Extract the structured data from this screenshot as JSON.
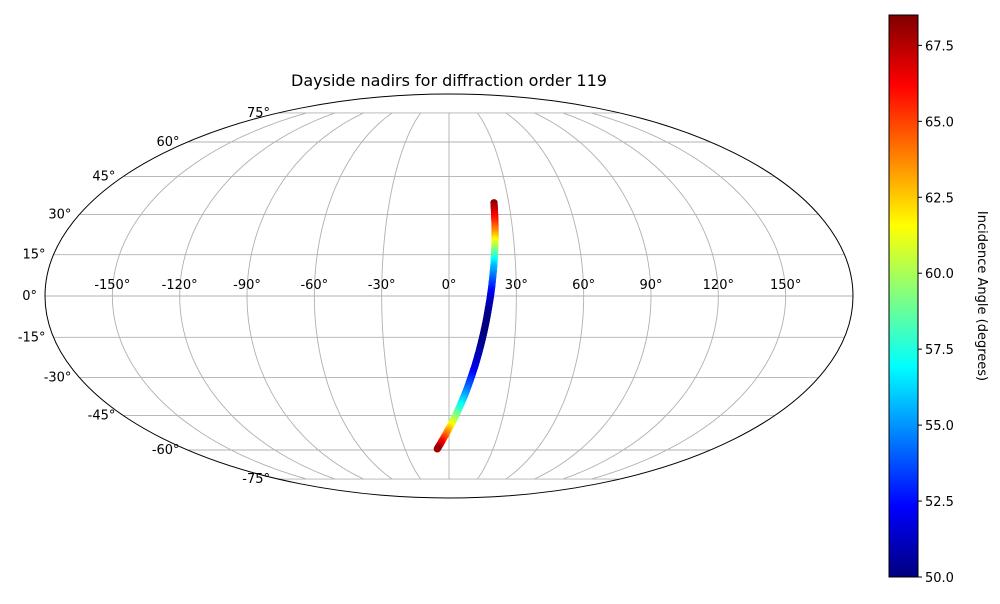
{
  "chart_data": {
    "type": "scatter",
    "projection": "mollweide",
    "title": "Dayside nadirs for diffraction order 119",
    "longitude_ticks": [
      "-150°",
      "-120°",
      "-90°",
      "-60°",
      "-30°",
      "0°",
      "30°",
      "60°",
      "90°",
      "120°",
      "150°"
    ],
    "latitude_ticks": [
      "-75°",
      "-60°",
      "-45°",
      "-30°",
      "-15°",
      "0°",
      "15°",
      "30°",
      "45°",
      "60°",
      "75°"
    ],
    "grid": true,
    "colormap": "jet",
    "colors": {
      "grid": "#b0b0b0",
      "outline": "#000000"
    },
    "colorbar": {
      "label": "Incidence Angle (degrees)",
      "range": [
        50.0,
        68.5
      ],
      "ticks": [
        "50.0",
        "52.5",
        "55.0",
        "57.5",
        "60.0",
        "62.5",
        "65.0",
        "67.5"
      ],
      "placement": "right"
    },
    "points": [
      {
        "lon": 22.6,
        "lat": 34.5,
        "incidence": 68.3
      },
      {
        "lon": 22.3,
        "lat": 31.0,
        "incidence": 67.0
      },
      {
        "lon": 22.0,
        "lat": 27.0,
        "incidence": 65.5
      },
      {
        "lon": 21.6,
        "lat": 23.0,
        "incidence": 63.5
      },
      {
        "lon": 21.2,
        "lat": 19.0,
        "incidence": 61.0
      },
      {
        "lon": 20.7,
        "lat": 15.0,
        "incidence": 58.5
      },
      {
        "lon": 20.2,
        "lat": 11.0,
        "incidence": 56.0
      },
      {
        "lon": 19.6,
        "lat": 7.0,
        "incidence": 54.5
      },
      {
        "lon": 19.0,
        "lat": 3.0,
        "incidence": 53.0
      },
      {
        "lon": 18.3,
        "lat": -1.0,
        "incidence": 51.5
      },
      {
        "lon": 17.5,
        "lat": -5.0,
        "incidence": 50.5
      },
      {
        "lon": 16.7,
        "lat": -9.0,
        "incidence": 50.0
      },
      {
        "lon": 15.8,
        "lat": -13.0,
        "incidence": 50.0
      },
      {
        "lon": 14.8,
        "lat": -17.0,
        "incidence": 50.3
      },
      {
        "lon": 13.7,
        "lat": -21.0,
        "incidence": 50.8
      },
      {
        "lon": 12.5,
        "lat": -25.0,
        "incidence": 51.5
      },
      {
        "lon": 11.1,
        "lat": -29.0,
        "incidence": 52.5
      },
      {
        "lon": 9.6,
        "lat": -33.0,
        "incidence": 53.8
      },
      {
        "lon": 7.9,
        "lat": -37.0,
        "incidence": 55.3
      },
      {
        "lon": 5.9,
        "lat": -41.0,
        "incidence": 57.0
      },
      {
        "lon": 3.7,
        "lat": -45.0,
        "incidence": 59.0
      },
      {
        "lon": 1.0,
        "lat": -49.0,
        "incidence": 61.5
      },
      {
        "lon": -2.0,
        "lat": -53.0,
        "incidence": 64.0
      },
      {
        "lon": -5.5,
        "lat": -57.0,
        "incidence": 66.5
      },
      {
        "lon": -8.0,
        "lat": -59.5,
        "incidence": 68.0
      }
    ]
  }
}
